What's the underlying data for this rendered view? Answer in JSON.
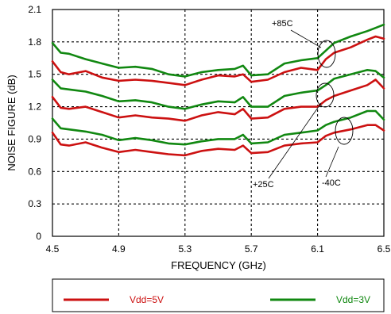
{
  "chart_data": {
    "type": "line",
    "xlabel": "FREQUENCY (GHz)",
    "ylabel": "NOISE FIGURE (dB)",
    "xlim": [
      4.5,
      6.5
    ],
    "ylim": [
      0,
      2.1
    ],
    "xticks": [
      "4.5",
      "4.9",
      "5.3",
      "5.7",
      "6.1",
      "6.5"
    ],
    "yticks": [
      "0",
      "0.3",
      "0.6",
      "0.9",
      "1.2",
      "1.5",
      "1.8",
      "2.1"
    ],
    "grid": "dashed",
    "colors": {
      "vdd5": "#cc1111",
      "vdd3": "#118811"
    },
    "series": [
      {
        "name": "Vdd=5V",
        "group": "+85C",
        "color": "#cc1111",
        "x": [
          4.5,
          4.55,
          4.6,
          4.7,
          4.8,
          4.9,
          5.0,
          5.1,
          5.2,
          5.3,
          5.4,
          5.5,
          5.6,
          5.65,
          5.7,
          5.8,
          5.9,
          6.0,
          6.1,
          6.15,
          6.2,
          6.3,
          6.4,
          6.45,
          6.5
        ],
        "y": [
          1.62,
          1.52,
          1.5,
          1.53,
          1.47,
          1.44,
          1.45,
          1.44,
          1.42,
          1.4,
          1.45,
          1.49,
          1.48,
          1.5,
          1.43,
          1.45,
          1.52,
          1.56,
          1.54,
          1.64,
          1.7,
          1.75,
          1.82,
          1.85,
          1.83
        ]
      },
      {
        "name": "Vdd=3V",
        "group": "+85C",
        "color": "#118811",
        "x": [
          4.5,
          4.55,
          4.6,
          4.7,
          4.8,
          4.9,
          5.0,
          5.1,
          5.2,
          5.3,
          5.4,
          5.5,
          5.6,
          5.65,
          5.7,
          5.8,
          5.9,
          6.0,
          6.1,
          6.15,
          6.2,
          6.3,
          6.4,
          6.45,
          6.5
        ],
        "y": [
          1.79,
          1.7,
          1.69,
          1.64,
          1.6,
          1.56,
          1.57,
          1.55,
          1.5,
          1.48,
          1.52,
          1.54,
          1.55,
          1.58,
          1.49,
          1.5,
          1.6,
          1.63,
          1.65,
          1.72,
          1.79,
          1.85,
          1.9,
          1.93,
          1.96
        ]
      },
      {
        "name": "Vdd=5V",
        "group": "+25C",
        "color": "#cc1111",
        "x": [
          4.5,
          4.55,
          4.6,
          4.7,
          4.8,
          4.9,
          5.0,
          5.1,
          5.2,
          5.3,
          5.4,
          5.5,
          5.6,
          5.65,
          5.7,
          5.8,
          5.9,
          6.0,
          6.1,
          6.15,
          6.2,
          6.3,
          6.4,
          6.45,
          6.5
        ],
        "y": [
          1.29,
          1.19,
          1.18,
          1.2,
          1.15,
          1.1,
          1.12,
          1.1,
          1.09,
          1.07,
          1.12,
          1.15,
          1.13,
          1.18,
          1.09,
          1.1,
          1.18,
          1.2,
          1.2,
          1.26,
          1.3,
          1.35,
          1.4,
          1.45,
          1.37
        ]
      },
      {
        "name": "Vdd=3V",
        "group": "+25C",
        "color": "#118811",
        "x": [
          4.5,
          4.55,
          4.6,
          4.7,
          4.8,
          4.9,
          5.0,
          5.1,
          5.2,
          5.3,
          5.4,
          5.5,
          5.6,
          5.65,
          5.7,
          5.8,
          5.9,
          6.0,
          6.1,
          6.15,
          6.2,
          6.3,
          6.4,
          6.45,
          6.5
        ],
        "y": [
          1.45,
          1.37,
          1.36,
          1.34,
          1.3,
          1.25,
          1.26,
          1.24,
          1.2,
          1.18,
          1.22,
          1.25,
          1.24,
          1.29,
          1.2,
          1.2,
          1.3,
          1.33,
          1.35,
          1.4,
          1.46,
          1.5,
          1.54,
          1.53,
          1.47
        ]
      },
      {
        "name": "Vdd=5V",
        "group": "-40C",
        "color": "#cc1111",
        "x": [
          4.5,
          4.55,
          4.6,
          4.7,
          4.8,
          4.9,
          5.0,
          5.1,
          5.2,
          5.3,
          5.4,
          5.5,
          5.6,
          5.65,
          5.7,
          5.8,
          5.9,
          6.0,
          6.1,
          6.15,
          6.2,
          6.3,
          6.4,
          6.45,
          6.5
        ],
        "y": [
          0.96,
          0.85,
          0.84,
          0.87,
          0.82,
          0.78,
          0.8,
          0.78,
          0.76,
          0.75,
          0.79,
          0.81,
          0.8,
          0.84,
          0.77,
          0.78,
          0.84,
          0.86,
          0.87,
          0.93,
          0.96,
          0.99,
          1.03,
          1.03,
          0.98
        ]
      },
      {
        "name": "Vdd=3V",
        "group": "-40C",
        "color": "#118811",
        "x": [
          4.5,
          4.55,
          4.6,
          4.7,
          4.8,
          4.9,
          5.0,
          5.1,
          5.2,
          5.3,
          5.4,
          5.5,
          5.6,
          5.65,
          5.7,
          5.8,
          5.9,
          6.0,
          6.1,
          6.15,
          6.2,
          6.3,
          6.4,
          6.45,
          6.5
        ],
        "y": [
          1.09,
          1.0,
          0.99,
          0.97,
          0.94,
          0.89,
          0.91,
          0.89,
          0.86,
          0.85,
          0.88,
          0.9,
          0.9,
          0.94,
          0.86,
          0.87,
          0.94,
          0.96,
          0.98,
          1.03,
          1.06,
          1.1,
          1.16,
          1.16,
          1.08
        ]
      }
    ],
    "annotations": [
      {
        "text": "+85C",
        "at": [
          6.2,
          1.66
        ]
      },
      {
        "text": "+25C",
        "at": [
          6.15,
          1.27
        ]
      },
      {
        "text": "-40C",
        "at": [
          6.3,
          1.0
        ]
      }
    ],
    "legend": [
      {
        "label": "Vdd=5V",
        "color": "#cc1111"
      },
      {
        "label": "Vdd=3V",
        "color": "#118811"
      }
    ],
    "legend_position": "bottom"
  }
}
